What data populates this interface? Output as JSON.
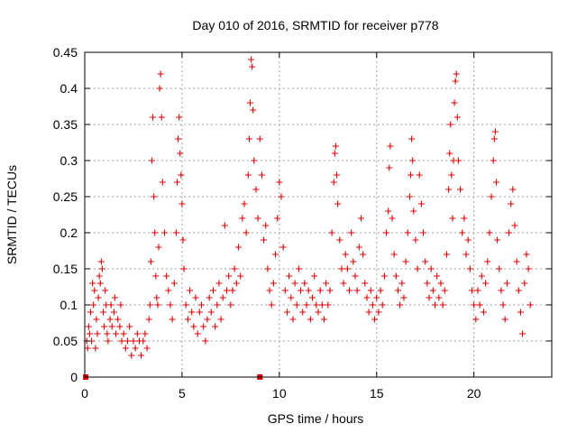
{
  "chart_data": {
    "type": "scatter",
    "title": "Day 010 of 2016, SRMTID for receiver p778",
    "xlabel": "GPS time / hours",
    "ylabel": "SRMTID / TECUs",
    "xlim": [
      0,
      24
    ],
    "ylim": [
      0,
      0.45
    ],
    "x_ticks": [
      0,
      5,
      10,
      15,
      20
    ],
    "x_tick_labels": [
      "0",
      "5",
      "10",
      "15",
      "20"
    ],
    "y_ticks": [
      0,
      0.05,
      0.1,
      0.15,
      0.2,
      0.25,
      0.3,
      0.35,
      0.4,
      0.45
    ],
    "y_tick_labels": [
      "0",
      "0.05",
      "0.1",
      "0.15",
      "0.2",
      "0.25",
      "0.3",
      "0.35",
      "0.4",
      "0.45"
    ],
    "grid": true,
    "marker": "+",
    "color": "#e00000",
    "zero_markers": [
      {
        "x": 0.05,
        "y": 0
      },
      {
        "x": 9.0,
        "y": 0
      }
    ],
    "series": [
      {
        "name": "SRMTID",
        "points": [
          [
            0.1,
            0.05
          ],
          [
            0.15,
            0.04
          ],
          [
            0.2,
            0.07
          ],
          [
            0.25,
            0.06
          ],
          [
            0.3,
            0.09
          ],
          [
            0.35,
            0.05
          ],
          [
            0.4,
            0.13
          ],
          [
            0.45,
            0.1
          ],
          [
            0.5,
            0.12
          ],
          [
            0.55,
            0.04
          ],
          [
            0.6,
            0.08
          ],
          [
            0.65,
            0.06
          ],
          [
            0.7,
            0.11
          ],
          [
            0.75,
            0.14
          ],
          [
            0.8,
            0.13
          ],
          [
            0.85,
            0.16
          ],
          [
            0.9,
            0.15
          ],
          [
            0.95,
            0.09
          ],
          [
            1.0,
            0.07
          ],
          [
            1.05,
            0.12
          ],
          [
            1.1,
            0.1
          ],
          [
            1.15,
            0.06
          ],
          [
            1.2,
            0.05
          ],
          [
            1.3,
            0.08
          ],
          [
            1.35,
            0.1
          ],
          [
            1.4,
            0.07
          ],
          [
            1.5,
            0.09
          ],
          [
            1.55,
            0.11
          ],
          [
            1.6,
            0.06
          ],
          [
            1.7,
            0.08
          ],
          [
            1.8,
            0.07
          ],
          [
            1.85,
            0.1
          ],
          [
            1.9,
            0.05
          ],
          [
            2.0,
            0.06
          ],
          [
            2.1,
            0.04
          ],
          [
            2.2,
            0.05
          ],
          [
            2.3,
            0.07
          ],
          [
            2.4,
            0.03
          ],
          [
            2.5,
            0.05
          ],
          [
            2.6,
            0.04
          ],
          [
            2.7,
            0.06
          ],
          [
            2.8,
            0.05
          ],
          [
            2.9,
            0.03
          ],
          [
            3.0,
            0.05
          ],
          [
            3.1,
            0.06
          ],
          [
            3.2,
            0.04
          ],
          [
            3.3,
            0.08
          ],
          [
            3.35,
            0.1
          ],
          [
            3.4,
            0.16
          ],
          [
            3.45,
            0.3
          ],
          [
            3.5,
            0.36
          ],
          [
            3.55,
            0.25
          ],
          [
            3.6,
            0.2
          ],
          [
            3.65,
            0.14
          ],
          [
            3.7,
            0.11
          ],
          [
            3.75,
            0.1
          ],
          [
            3.8,
            0.18
          ],
          [
            3.85,
            0.4
          ],
          [
            3.9,
            0.42
          ],
          [
            3.95,
            0.36
          ],
          [
            4.0,
            0.27
          ],
          [
            4.1,
            0.2
          ],
          [
            4.2,
            0.14
          ],
          [
            4.3,
            0.12
          ],
          [
            4.4,
            0.1
          ],
          [
            4.5,
            0.08
          ],
          [
            4.6,
            0.13
          ],
          [
            4.7,
            0.2
          ],
          [
            4.75,
            0.27
          ],
          [
            4.8,
            0.33
          ],
          [
            4.85,
            0.36
          ],
          [
            4.9,
            0.31
          ],
          [
            4.95,
            0.28
          ],
          [
            5.0,
            0.24
          ],
          [
            5.05,
            0.19
          ],
          [
            5.1,
            0.15
          ],
          [
            5.2,
            0.1
          ],
          [
            5.3,
            0.08
          ],
          [
            5.4,
            0.12
          ],
          [
            5.5,
            0.09
          ],
          [
            5.6,
            0.07
          ],
          [
            5.7,
            0.11
          ],
          [
            5.8,
            0.06
          ],
          [
            5.9,
            0.09
          ],
          [
            6.0,
            0.1
          ],
          [
            6.1,
            0.07
          ],
          [
            6.2,
            0.05
          ],
          [
            6.3,
            0.08
          ],
          [
            6.4,
            0.11
          ],
          [
            6.5,
            0.09
          ],
          [
            6.6,
            0.12
          ],
          [
            6.7,
            0.07
          ],
          [
            6.8,
            0.1
          ],
          [
            6.9,
            0.13
          ],
          [
            7.0,
            0.08
          ],
          [
            7.1,
            0.11
          ],
          [
            7.2,
            0.21
          ],
          [
            7.3,
            0.12
          ],
          [
            7.4,
            0.14
          ],
          [
            7.5,
            0.1
          ],
          [
            7.6,
            0.12
          ],
          [
            7.7,
            0.15
          ],
          [
            7.8,
            0.13
          ],
          [
            7.9,
            0.18
          ],
          [
            8.0,
            0.14
          ],
          [
            8.1,
            0.22
          ],
          [
            8.2,
            0.24
          ],
          [
            8.3,
            0.2
          ],
          [
            8.4,
            0.28
          ],
          [
            8.45,
            0.33
          ],
          [
            8.5,
            0.38
          ],
          [
            8.55,
            0.44
          ],
          [
            8.6,
            0.43
          ],
          [
            8.65,
            0.37
          ],
          [
            8.7,
            0.3
          ],
          [
            8.8,
            0.26
          ],
          [
            8.9,
            0.22
          ],
          [
            9.0,
            0.33
          ],
          [
            9.1,
            0.28
          ],
          [
            9.2,
            0.19
          ],
          [
            9.3,
            0.21
          ],
          [
            9.4,
            0.15
          ],
          [
            9.5,
            0.12
          ],
          [
            9.6,
            0.1
          ],
          [
            9.7,
            0.13
          ],
          [
            9.8,
            0.17
          ],
          [
            9.9,
            0.22
          ],
          [
            10.0,
            0.27
          ],
          [
            10.1,
            0.25
          ],
          [
            10.2,
            0.18
          ],
          [
            10.3,
            0.12
          ],
          [
            10.4,
            0.09
          ],
          [
            10.5,
            0.14
          ],
          [
            10.6,
            0.11
          ],
          [
            10.7,
            0.08
          ],
          [
            10.8,
            0.13
          ],
          [
            10.9,
            0.1
          ],
          [
            11.0,
            0.15
          ],
          [
            11.1,
            0.12
          ],
          [
            11.2,
            0.09
          ],
          [
            11.3,
            0.13
          ],
          [
            11.4,
            0.1
          ],
          [
            11.5,
            0.12
          ],
          [
            11.6,
            0.08
          ],
          [
            11.7,
            0.11
          ],
          [
            11.8,
            0.14
          ],
          [
            11.9,
            0.1
          ],
          [
            12.0,
            0.09
          ],
          [
            12.1,
            0.12
          ],
          [
            12.2,
            0.1
          ],
          [
            12.3,
            0.08
          ],
          [
            12.4,
            0.13
          ],
          [
            12.5,
            0.1
          ],
          [
            12.6,
            0.12
          ],
          [
            12.7,
            0.2
          ],
          [
            12.8,
            0.27
          ],
          [
            12.85,
            0.31
          ],
          [
            12.9,
            0.32
          ],
          [
            12.95,
            0.28
          ],
          [
            13.0,
            0.24
          ],
          [
            13.1,
            0.19
          ],
          [
            13.2,
            0.15
          ],
          [
            13.3,
            0.13
          ],
          [
            13.4,
            0.17
          ],
          [
            13.5,
            0.15
          ],
          [
            13.6,
            0.12
          ],
          [
            13.7,
            0.2
          ],
          [
            13.8,
            0.16
          ],
          [
            13.9,
            0.14
          ],
          [
            14.0,
            0.12
          ],
          [
            14.1,
            0.18
          ],
          [
            14.2,
            0.22
          ],
          [
            14.3,
            0.17
          ],
          [
            14.4,
            0.13
          ],
          [
            14.5,
            0.11
          ],
          [
            14.6,
            0.09
          ],
          [
            14.7,
            0.12
          ],
          [
            14.8,
            0.1
          ],
          [
            14.9,
            0.08
          ],
          [
            15.0,
            0.11
          ],
          [
            15.1,
            0.09
          ],
          [
            15.2,
            0.12
          ],
          [
            15.3,
            0.1
          ],
          [
            15.4,
            0.14
          ],
          [
            15.5,
            0.2
          ],
          [
            15.6,
            0.23
          ],
          [
            15.65,
            0.29
          ],
          [
            15.7,
            0.32
          ],
          [
            15.8,
            0.22
          ],
          [
            15.9,
            0.17
          ],
          [
            16.0,
            0.14
          ],
          [
            16.1,
            0.12
          ],
          [
            16.2,
            0.1
          ],
          [
            16.3,
            0.13
          ],
          [
            16.4,
            0.11
          ],
          [
            16.5,
            0.16
          ],
          [
            16.6,
            0.2
          ],
          [
            16.7,
            0.25
          ],
          [
            16.75,
            0.28
          ],
          [
            16.8,
            0.33
          ],
          [
            16.85,
            0.3
          ],
          [
            16.9,
            0.23
          ],
          [
            17.0,
            0.19
          ],
          [
            17.1,
            0.15
          ],
          [
            17.2,
            0.28
          ],
          [
            17.3,
            0.24
          ],
          [
            17.4,
            0.2
          ],
          [
            17.5,
            0.16
          ],
          [
            17.6,
            0.13
          ],
          [
            17.7,
            0.11
          ],
          [
            17.8,
            0.15
          ],
          [
            17.9,
            0.12
          ],
          [
            18.0,
            0.1
          ],
          [
            18.1,
            0.14
          ],
          [
            18.2,
            0.11
          ],
          [
            18.3,
            0.13
          ],
          [
            18.4,
            0.1
          ],
          [
            18.5,
            0.12
          ],
          [
            18.6,
            0.17
          ],
          [
            18.7,
            0.26
          ],
          [
            18.75,
            0.31
          ],
          [
            18.8,
            0.35
          ],
          [
            18.85,
            0.28
          ],
          [
            18.9,
            0.22
          ],
          [
            18.95,
            0.3
          ],
          [
            19.0,
            0.38
          ],
          [
            19.05,
            0.41
          ],
          [
            19.1,
            0.42
          ],
          [
            19.15,
            0.36
          ],
          [
            19.2,
            0.3
          ],
          [
            19.3,
            0.26
          ],
          [
            19.4,
            0.2
          ],
          [
            19.5,
            0.22
          ],
          [
            19.6,
            0.17
          ],
          [
            19.7,
            0.19
          ],
          [
            19.8,
            0.15
          ],
          [
            19.9,
            0.12
          ],
          [
            20.0,
            0.1
          ],
          [
            20.1,
            0.08
          ],
          [
            20.2,
            0.12
          ],
          [
            20.3,
            0.1
          ],
          [
            20.4,
            0.14
          ],
          [
            20.5,
            0.09
          ],
          [
            20.6,
            0.13
          ],
          [
            20.7,
            0.16
          ],
          [
            20.8,
            0.2
          ],
          [
            20.9,
            0.25
          ],
          [
            21.0,
            0.3
          ],
          [
            21.05,
            0.33
          ],
          [
            21.1,
            0.34
          ],
          [
            21.15,
            0.27
          ],
          [
            21.2,
            0.19
          ],
          [
            21.3,
            0.15
          ],
          [
            21.4,
            0.12
          ],
          [
            21.5,
            0.1
          ],
          [
            21.6,
            0.08
          ],
          [
            21.7,
            0.13
          ],
          [
            21.8,
            0.2
          ],
          [
            21.9,
            0.24
          ],
          [
            22.0,
            0.26
          ],
          [
            22.1,
            0.21
          ],
          [
            22.2,
            0.16
          ],
          [
            22.3,
            0.12
          ],
          [
            22.4,
            0.09
          ],
          [
            22.5,
            0.06
          ],
          [
            22.6,
            0.13
          ],
          [
            22.7,
            0.17
          ],
          [
            22.8,
            0.15
          ],
          [
            22.9,
            0.1
          ]
        ]
      }
    ]
  }
}
